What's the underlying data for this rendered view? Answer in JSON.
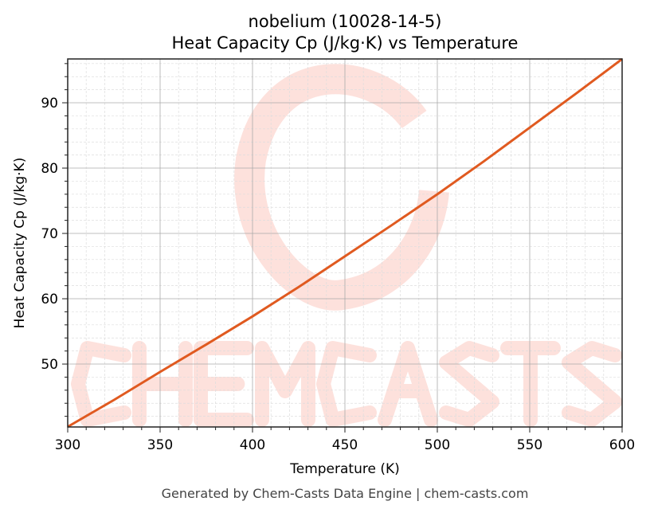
{
  "chart_data": {
    "type": "line",
    "title": "nobelium (10028-14-5)",
    "subtitle": "Heat Capacity Cp (J/kg·K) vs Temperature",
    "xlabel": "Temperature (K)",
    "ylabel": "Heat Capacity Cp (J/kg·K)",
    "xlim": [
      300,
      600
    ],
    "ylim": [
      40.37,
      96.71
    ],
    "xticks": [
      300,
      350,
      400,
      450,
      500,
      550,
      600
    ],
    "yticks": [
      50,
      60,
      70,
      80,
      90
    ],
    "grid": true,
    "x": [
      300,
      325,
      350,
      375,
      400,
      425,
      450,
      475,
      500,
      525,
      550,
      575,
      600
    ],
    "y": [
      40.4,
      44.5,
      48.8,
      53.0,
      57.3,
      61.8,
      66.5,
      71.2,
      76.0,
      81.0,
      86.2,
      91.4,
      96.7
    ],
    "line_color": "#e05a20",
    "watermark": "CHEMCASTS",
    "footer": "Generated by Chem-Casts Data Engine | chem-casts.com"
  }
}
